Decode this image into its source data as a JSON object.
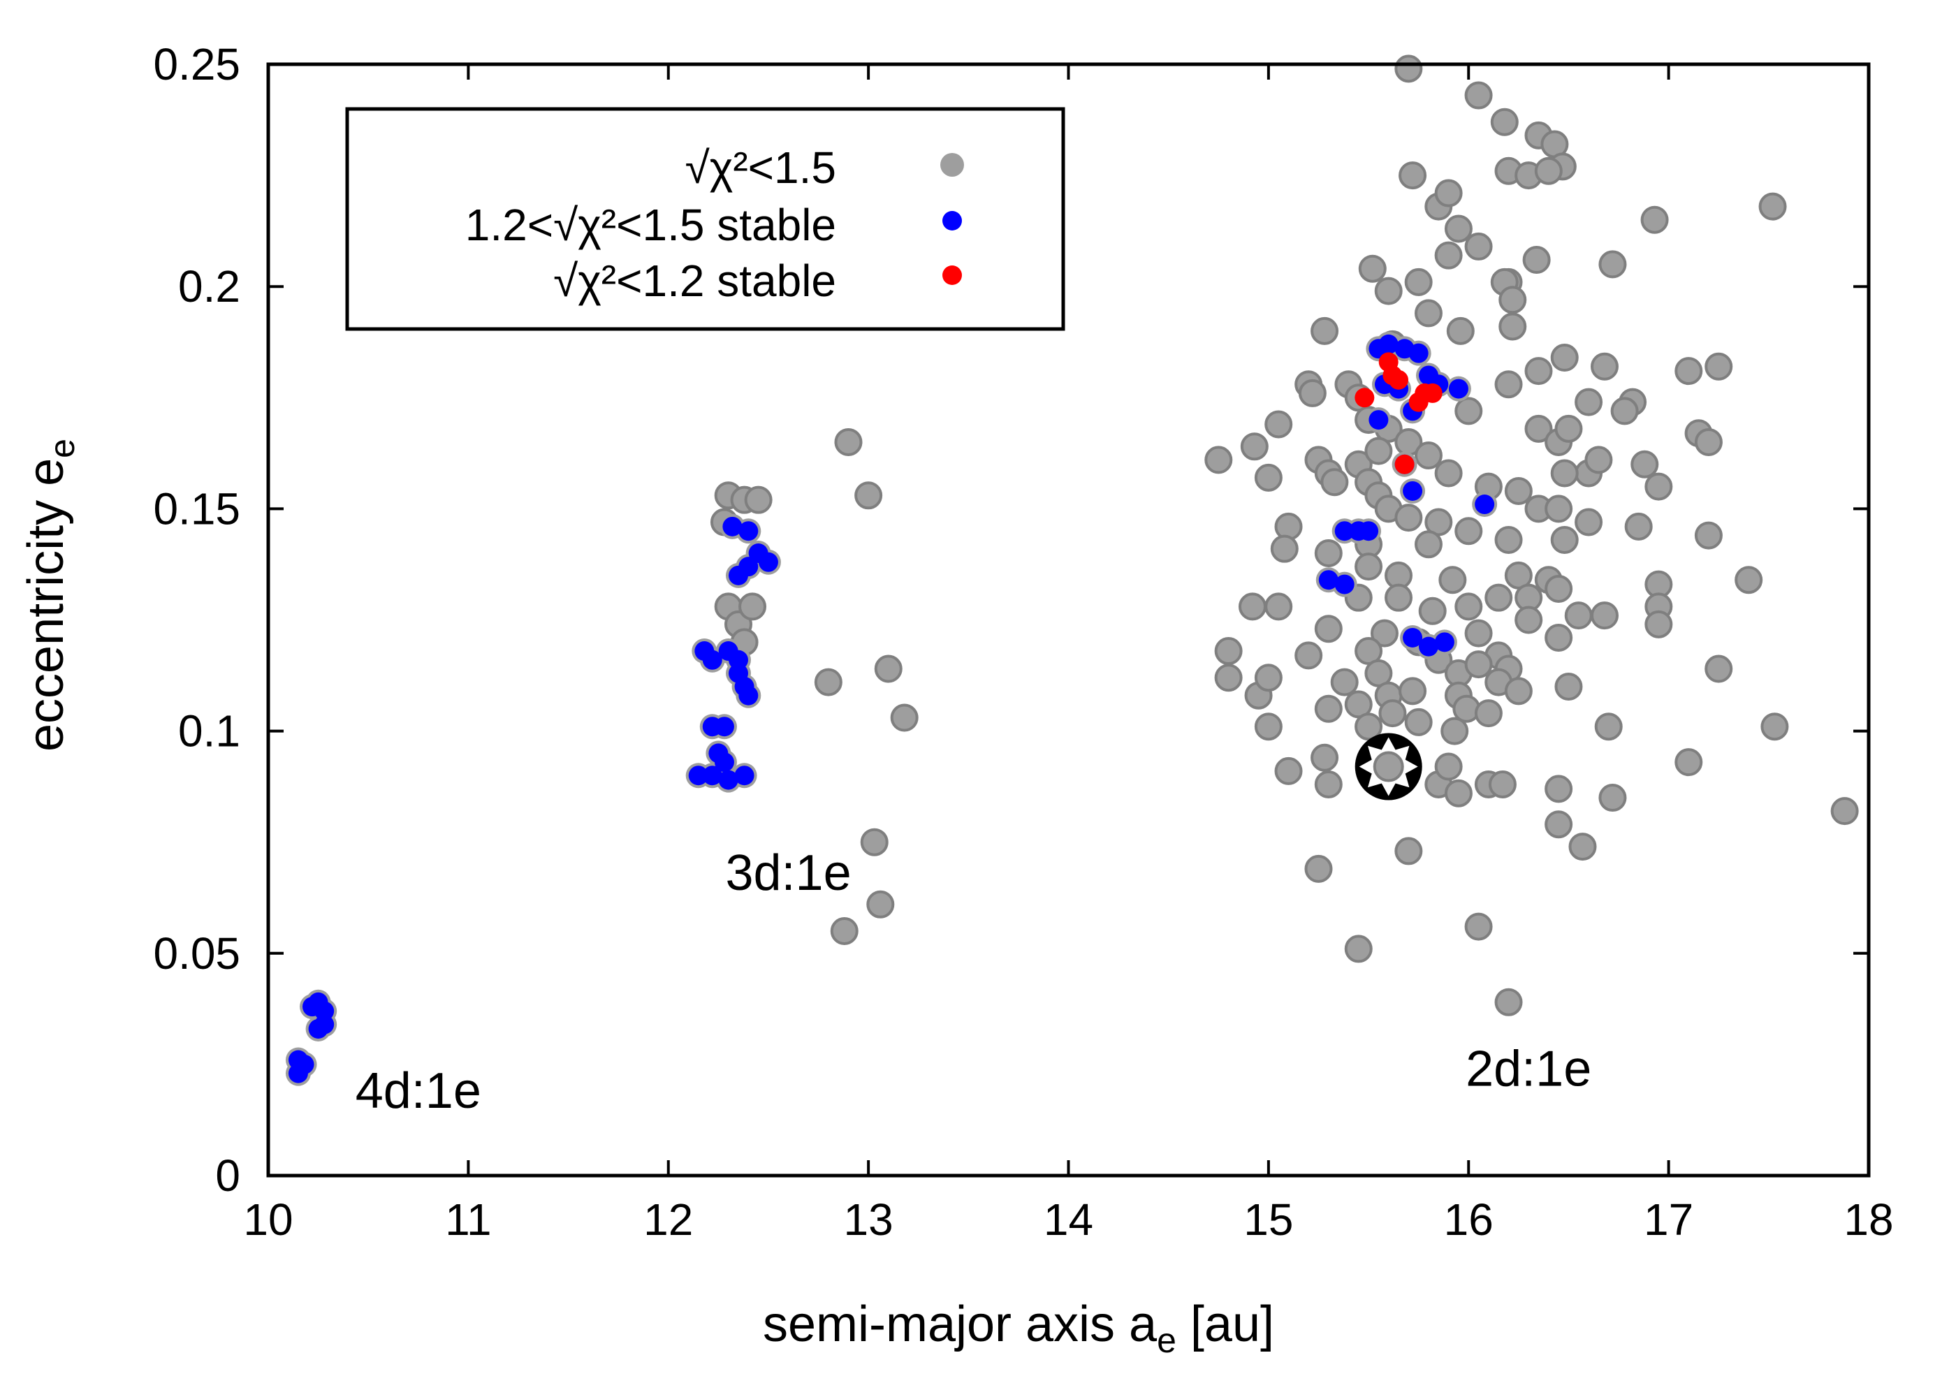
{
  "chart_data": {
    "type": "scatter",
    "title": "",
    "xlabel": "semi-major axis a",
    "xlabel_sub": "e",
    "xlabel_unit": " [au]",
    "ylabel": "eccentricity e",
    "ylabel_sub": "e",
    "xlim": [
      10,
      18
    ],
    "ylim": [
      0,
      0.25
    ],
    "xticks": [
      "10",
      "11",
      "12",
      "13",
      "14",
      "15",
      "16",
      "17",
      "18"
    ],
    "yticks": [
      "0",
      "0.05",
      "0.1",
      "0.15",
      "0.2",
      "0.25"
    ],
    "legend_position": "top-left",
    "legend": [
      {
        "label": "√χ²<1.5",
        "color": "#9e9e9e"
      },
      {
        "label": "1.2<√χ²<1.5 stable",
        "color": "#0000ff"
      },
      {
        "label": "√χ²<1.2 stable",
        "color": "#ff0000"
      }
    ],
    "annotations": [
      {
        "text": "4d:1e",
        "x": 10.75,
        "y": 0.019
      },
      {
        "text": "3d:1e",
        "x": 12.6,
        "y": 0.068
      },
      {
        "text": "2d:1e",
        "x": 16.3,
        "y": 0.024
      }
    ],
    "best_fit": {
      "label": "best fit",
      "x": 15.6,
      "y": 0.092
    },
    "series": [
      {
        "name": "√χ²<1.5",
        "color": "#9e9e9e",
        "points": [
          [
            15.7,
            0.249
          ],
          [
            16.05,
            0.243
          ],
          [
            16.18,
            0.237
          ],
          [
            15.72,
            0.225
          ],
          [
            16.2,
            0.226
          ],
          [
            16.3,
            0.225
          ],
          [
            16.35,
            0.234
          ],
          [
            16.43,
            0.232
          ],
          [
            16.47,
            0.227
          ],
          [
            16.4,
            0.226
          ],
          [
            15.85,
            0.218
          ],
          [
            15.9,
            0.221
          ],
          [
            17.52,
            0.218
          ],
          [
            16.93,
            0.215
          ],
          [
            15.95,
            0.213
          ],
          [
            16.05,
            0.209
          ],
          [
            16.2,
            0.201
          ],
          [
            16.34,
            0.206
          ],
          [
            16.72,
            0.205
          ],
          [
            15.52,
            0.204
          ],
          [
            15.6,
            0.199
          ],
          [
            15.75,
            0.201
          ],
          [
            15.9,
            0.207
          ],
          [
            16.18,
            0.201
          ],
          [
            16.22,
            0.197
          ],
          [
            15.8,
            0.194
          ],
          [
            15.96,
            0.19
          ],
          [
            16.22,
            0.191
          ],
          [
            15.28,
            0.19
          ],
          [
            15.62,
            0.187
          ],
          [
            16.48,
            0.184
          ],
          [
            16.35,
            0.181
          ],
          [
            16.68,
            0.182
          ],
          [
            17.1,
            0.181
          ],
          [
            17.25,
            0.182
          ],
          [
            15.2,
            0.178
          ],
          [
            15.22,
            0.176
          ],
          [
            15.4,
            0.178
          ],
          [
            15.45,
            0.175
          ],
          [
            16.2,
            0.178
          ],
          [
            16.82,
            0.174
          ],
          [
            16.78,
            0.172
          ],
          [
            16.6,
            0.174
          ],
          [
            15.5,
            0.17
          ],
          [
            15.6,
            0.168
          ],
          [
            16.0,
            0.172
          ],
          [
            15.05,
            0.169
          ],
          [
            16.35,
            0.168
          ],
          [
            16.45,
            0.165
          ],
          [
            16.5,
            0.168
          ],
          [
            17.15,
            0.167
          ],
          [
            17.2,
            0.165
          ],
          [
            14.93,
            0.164
          ],
          [
            14.75,
            0.161
          ],
          [
            15.45,
            0.16
          ],
          [
            15.55,
            0.163
          ],
          [
            15.7,
            0.165
          ],
          [
            15.8,
            0.162
          ],
          [
            15.9,
            0.158
          ],
          [
            15.25,
            0.161
          ],
          [
            15.3,
            0.158
          ],
          [
            15.33,
            0.156
          ],
          [
            16.88,
            0.16
          ],
          [
            16.6,
            0.158
          ],
          [
            16.65,
            0.161
          ],
          [
            16.48,
            0.158
          ],
          [
            15.0,
            0.157
          ],
          [
            15.5,
            0.156
          ],
          [
            15.55,
            0.153
          ],
          [
            16.1,
            0.155
          ],
          [
            16.25,
            0.154
          ],
          [
            16.95,
            0.155
          ],
          [
            15.6,
            0.15
          ],
          [
            15.7,
            0.148
          ],
          [
            15.85,
            0.147
          ],
          [
            16.35,
            0.15
          ],
          [
            16.45,
            0.15
          ],
          [
            16.6,
            0.147
          ],
          [
            15.1,
            0.146
          ],
          [
            15.08,
            0.141
          ],
          [
            15.3,
            0.14
          ],
          [
            15.5,
            0.142
          ],
          [
            15.8,
            0.142
          ],
          [
            16.0,
            0.145
          ],
          [
            16.2,
            0.143
          ],
          [
            16.48,
            0.143
          ],
          [
            16.85,
            0.146
          ],
          [
            17.2,
            0.144
          ],
          [
            15.5,
            0.137
          ],
          [
            15.65,
            0.135
          ],
          [
            15.92,
            0.134
          ],
          [
            16.25,
            0.135
          ],
          [
            16.4,
            0.134
          ],
          [
            16.45,
            0.132
          ],
          [
            15.45,
            0.13
          ],
          [
            15.65,
            0.13
          ],
          [
            15.82,
            0.127
          ],
          [
            16.0,
            0.128
          ],
          [
            16.15,
            0.13
          ],
          [
            16.3,
            0.13
          ],
          [
            16.3,
            0.125
          ],
          [
            16.55,
            0.126
          ],
          [
            16.68,
            0.126
          ],
          [
            16.95,
            0.133
          ],
          [
            16.95,
            0.128
          ],
          [
            16.95,
            0.124
          ],
          [
            17.4,
            0.134
          ],
          [
            14.92,
            0.128
          ],
          [
            15.05,
            0.128
          ],
          [
            15.3,
            0.123
          ],
          [
            15.58,
            0.122
          ],
          [
            15.75,
            0.12
          ],
          [
            16.05,
            0.122
          ],
          [
            16.15,
            0.117
          ],
          [
            16.45,
            0.121
          ],
          [
            14.8,
            0.118
          ],
          [
            15.2,
            0.117
          ],
          [
            15.5,
            0.118
          ],
          [
            15.55,
            0.113
          ],
          [
            15.85,
            0.116
          ],
          [
            15.95,
            0.113
          ],
          [
            16.05,
            0.115
          ],
          [
            16.2,
            0.114
          ],
          [
            16.5,
            0.11
          ],
          [
            17.25,
            0.114
          ],
          [
            14.8,
            0.112
          ],
          [
            14.95,
            0.108
          ],
          [
            15.0,
            0.112
          ],
          [
            15.38,
            0.111
          ],
          [
            15.6,
            0.108
          ],
          [
            15.72,
            0.109
          ],
          [
            15.95,
            0.108
          ],
          [
            16.15,
            0.111
          ],
          [
            16.25,
            0.109
          ],
          [
            15.3,
            0.105
          ],
          [
            15.45,
            0.106
          ],
          [
            15.62,
            0.104
          ],
          [
            15.75,
            0.102
          ],
          [
            15.99,
            0.105
          ],
          [
            16.1,
            0.104
          ],
          [
            16.7,
            0.101
          ],
          [
            17.53,
            0.101
          ],
          [
            15.0,
            0.101
          ],
          [
            15.5,
            0.101
          ],
          [
            15.93,
            0.1
          ],
          [
            15.1,
            0.091
          ],
          [
            15.28,
            0.094
          ],
          [
            15.3,
            0.088
          ],
          [
            15.55,
            0.092
          ],
          [
            15.65,
            0.091
          ],
          [
            15.85,
            0.088
          ],
          [
            15.9,
            0.092
          ],
          [
            15.95,
            0.086
          ],
          [
            16.1,
            0.088
          ],
          [
            16.17,
            0.088
          ],
          [
            16.45,
            0.087
          ],
          [
            16.72,
            0.085
          ],
          [
            17.1,
            0.093
          ],
          [
            17.88,
            0.082
          ],
          [
            16.45,
            0.079
          ],
          [
            16.57,
            0.074
          ],
          [
            15.7,
            0.073
          ],
          [
            15.25,
            0.069
          ],
          [
            16.05,
            0.056
          ],
          [
            15.45,
            0.051
          ],
          [
            16.2,
            0.039
          ],
          [
            12.9,
            0.165
          ],
          [
            13.0,
            0.153
          ],
          [
            12.8,
            0.111
          ],
          [
            13.1,
            0.114
          ],
          [
            13.18,
            0.103
          ],
          [
            13.03,
            0.075
          ],
          [
            13.06,
            0.061
          ],
          [
            12.88,
            0.055
          ],
          [
            12.3,
            0.153
          ],
          [
            12.38,
            0.152
          ],
          [
            12.45,
            0.152
          ],
          [
            12.28,
            0.147
          ],
          [
            12.3,
            0.128
          ],
          [
            12.35,
            0.124
          ],
          [
            12.42,
            0.128
          ],
          [
            12.38,
            0.12
          ]
        ]
      },
      {
        "name": "1.2<√χ²<1.5 stable",
        "color": "#0000ff",
        "points": [
          [
            10.15,
            0.023
          ],
          [
            10.15,
            0.026
          ],
          [
            10.18,
            0.025
          ],
          [
            10.22,
            0.038
          ],
          [
            10.25,
            0.039
          ],
          [
            10.28,
            0.037
          ],
          [
            10.25,
            0.033
          ],
          [
            10.28,
            0.034
          ],
          [
            12.32,
            0.146
          ],
          [
            12.4,
            0.145
          ],
          [
            12.45,
            0.14
          ],
          [
            12.5,
            0.138
          ],
          [
            12.35,
            0.135
          ],
          [
            12.4,
            0.137
          ],
          [
            12.18,
            0.118
          ],
          [
            12.22,
            0.116
          ],
          [
            12.3,
            0.118
          ],
          [
            12.35,
            0.113
          ],
          [
            12.38,
            0.11
          ],
          [
            12.4,
            0.108
          ],
          [
            12.35,
            0.116
          ],
          [
            12.22,
            0.101
          ],
          [
            12.28,
            0.101
          ],
          [
            12.25,
            0.095
          ],
          [
            12.28,
            0.093
          ],
          [
            12.15,
            0.09
          ],
          [
            12.22,
            0.09
          ],
          [
            12.3,
            0.089
          ],
          [
            12.38,
            0.09
          ],
          [
            15.55,
            0.186
          ],
          [
            15.6,
            0.187
          ],
          [
            15.68,
            0.186
          ],
          [
            15.75,
            0.185
          ],
          [
            15.8,
            0.18
          ],
          [
            15.58,
            0.178
          ],
          [
            15.65,
            0.177
          ],
          [
            15.72,
            0.172
          ],
          [
            15.85,
            0.178
          ],
          [
            15.95,
            0.177
          ],
          [
            15.55,
            0.17
          ],
          [
            15.68,
            0.16
          ],
          [
            15.72,
            0.154
          ],
          [
            15.38,
            0.145
          ],
          [
            15.45,
            0.145
          ],
          [
            15.5,
            0.145
          ],
          [
            15.3,
            0.134
          ],
          [
            15.38,
            0.133
          ],
          [
            15.72,
            0.121
          ],
          [
            15.8,
            0.119
          ],
          [
            15.88,
            0.12
          ],
          [
            16.08,
            0.151
          ]
        ]
      },
      {
        "name": "√χ²<1.2 stable",
        "color": "#ff0000",
        "points": [
          [
            15.48,
            0.175
          ],
          [
            15.6,
            0.183
          ],
          [
            15.62,
            0.18
          ],
          [
            15.65,
            0.179
          ],
          [
            15.75,
            0.174
          ],
          [
            15.78,
            0.176
          ],
          [
            15.82,
            0.176
          ],
          [
            15.68,
            0.16
          ]
        ]
      }
    ]
  }
}
